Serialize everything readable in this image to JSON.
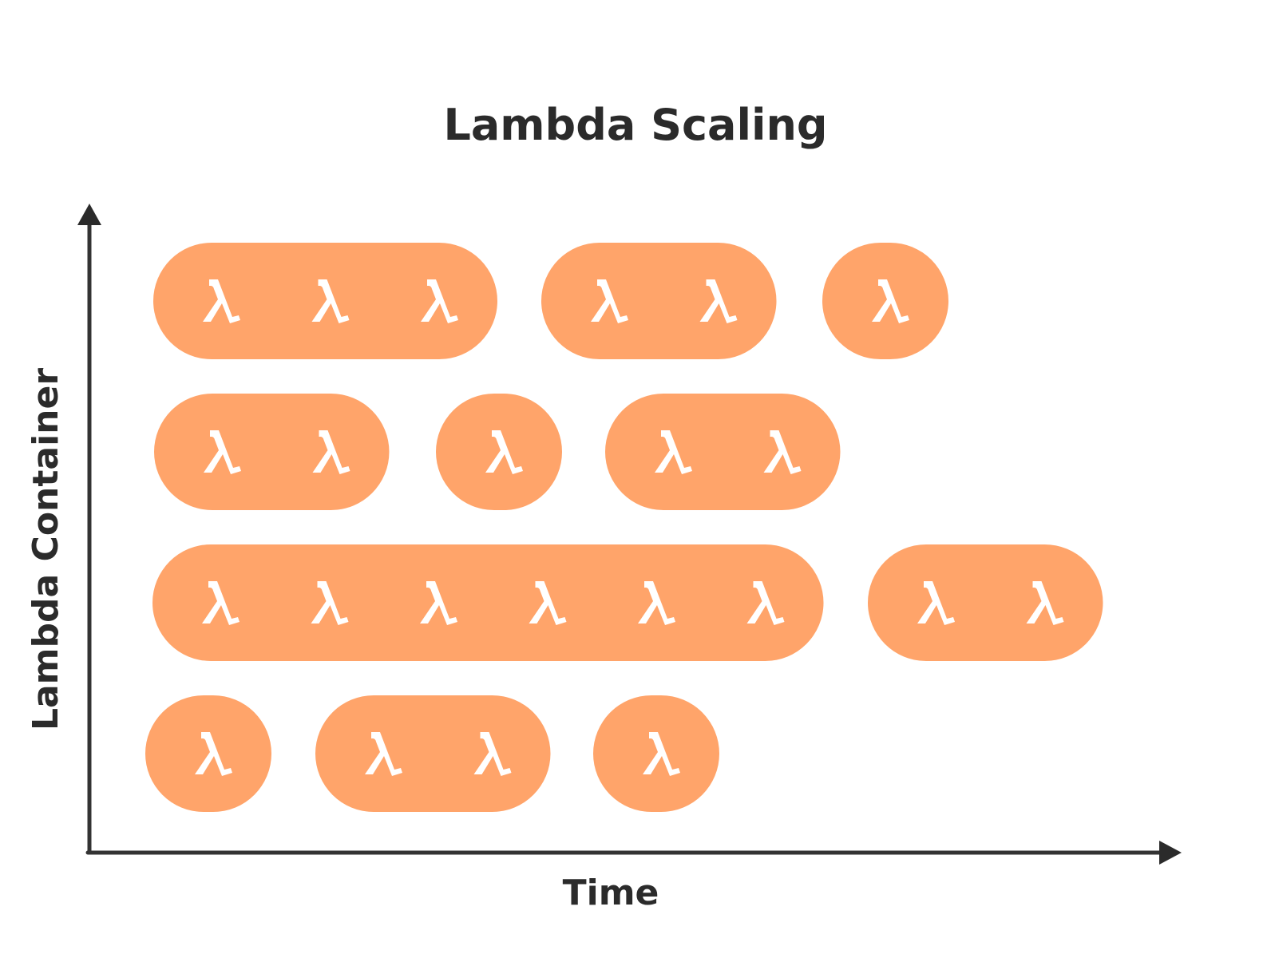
{
  "diagram": {
    "title": "Lambda Scaling",
    "x_axis_label": "Time",
    "y_axis_label": "Lambda Container",
    "pill_color": "#FFA46A",
    "icon_color": "#ffffff",
    "icon": "lambda-icon",
    "rows": [
      {
        "name": "row-1",
        "groups": [
          3,
          2,
          1
        ]
      },
      {
        "name": "row-2",
        "groups": [
          2,
          1,
          2
        ]
      },
      {
        "name": "row-3",
        "groups": [
          6,
          2
        ]
      },
      {
        "name": "row-4",
        "groups": [
          1,
          2,
          1
        ]
      }
    ]
  }
}
